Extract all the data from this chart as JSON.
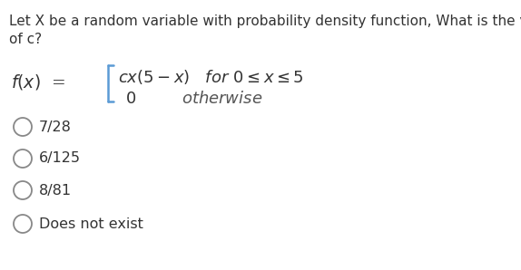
{
  "title_line1": "Let X be a random variable with probability density function, What is the value",
  "title_line2": "of c?",
  "title_color": "#333333",
  "title_fontsize": 11.0,
  "fx_color": "#333333",
  "fx_fontsize": 13.5,
  "formula_top_color": "#333333",
  "formula_bot_color": "#333333",
  "formula_otherwise_color": "#555555",
  "brace_color": "#5b9bd5",
  "options": [
    "7/28",
    "6/125",
    "8/81",
    "Does not exist"
  ],
  "option_color": "#333333",
  "option_fontsize": 11.5,
  "circle_color": "#888888",
  "background": "#ffffff",
  "fig_width": 5.74,
  "fig_height": 2.98,
  "dpi": 100
}
